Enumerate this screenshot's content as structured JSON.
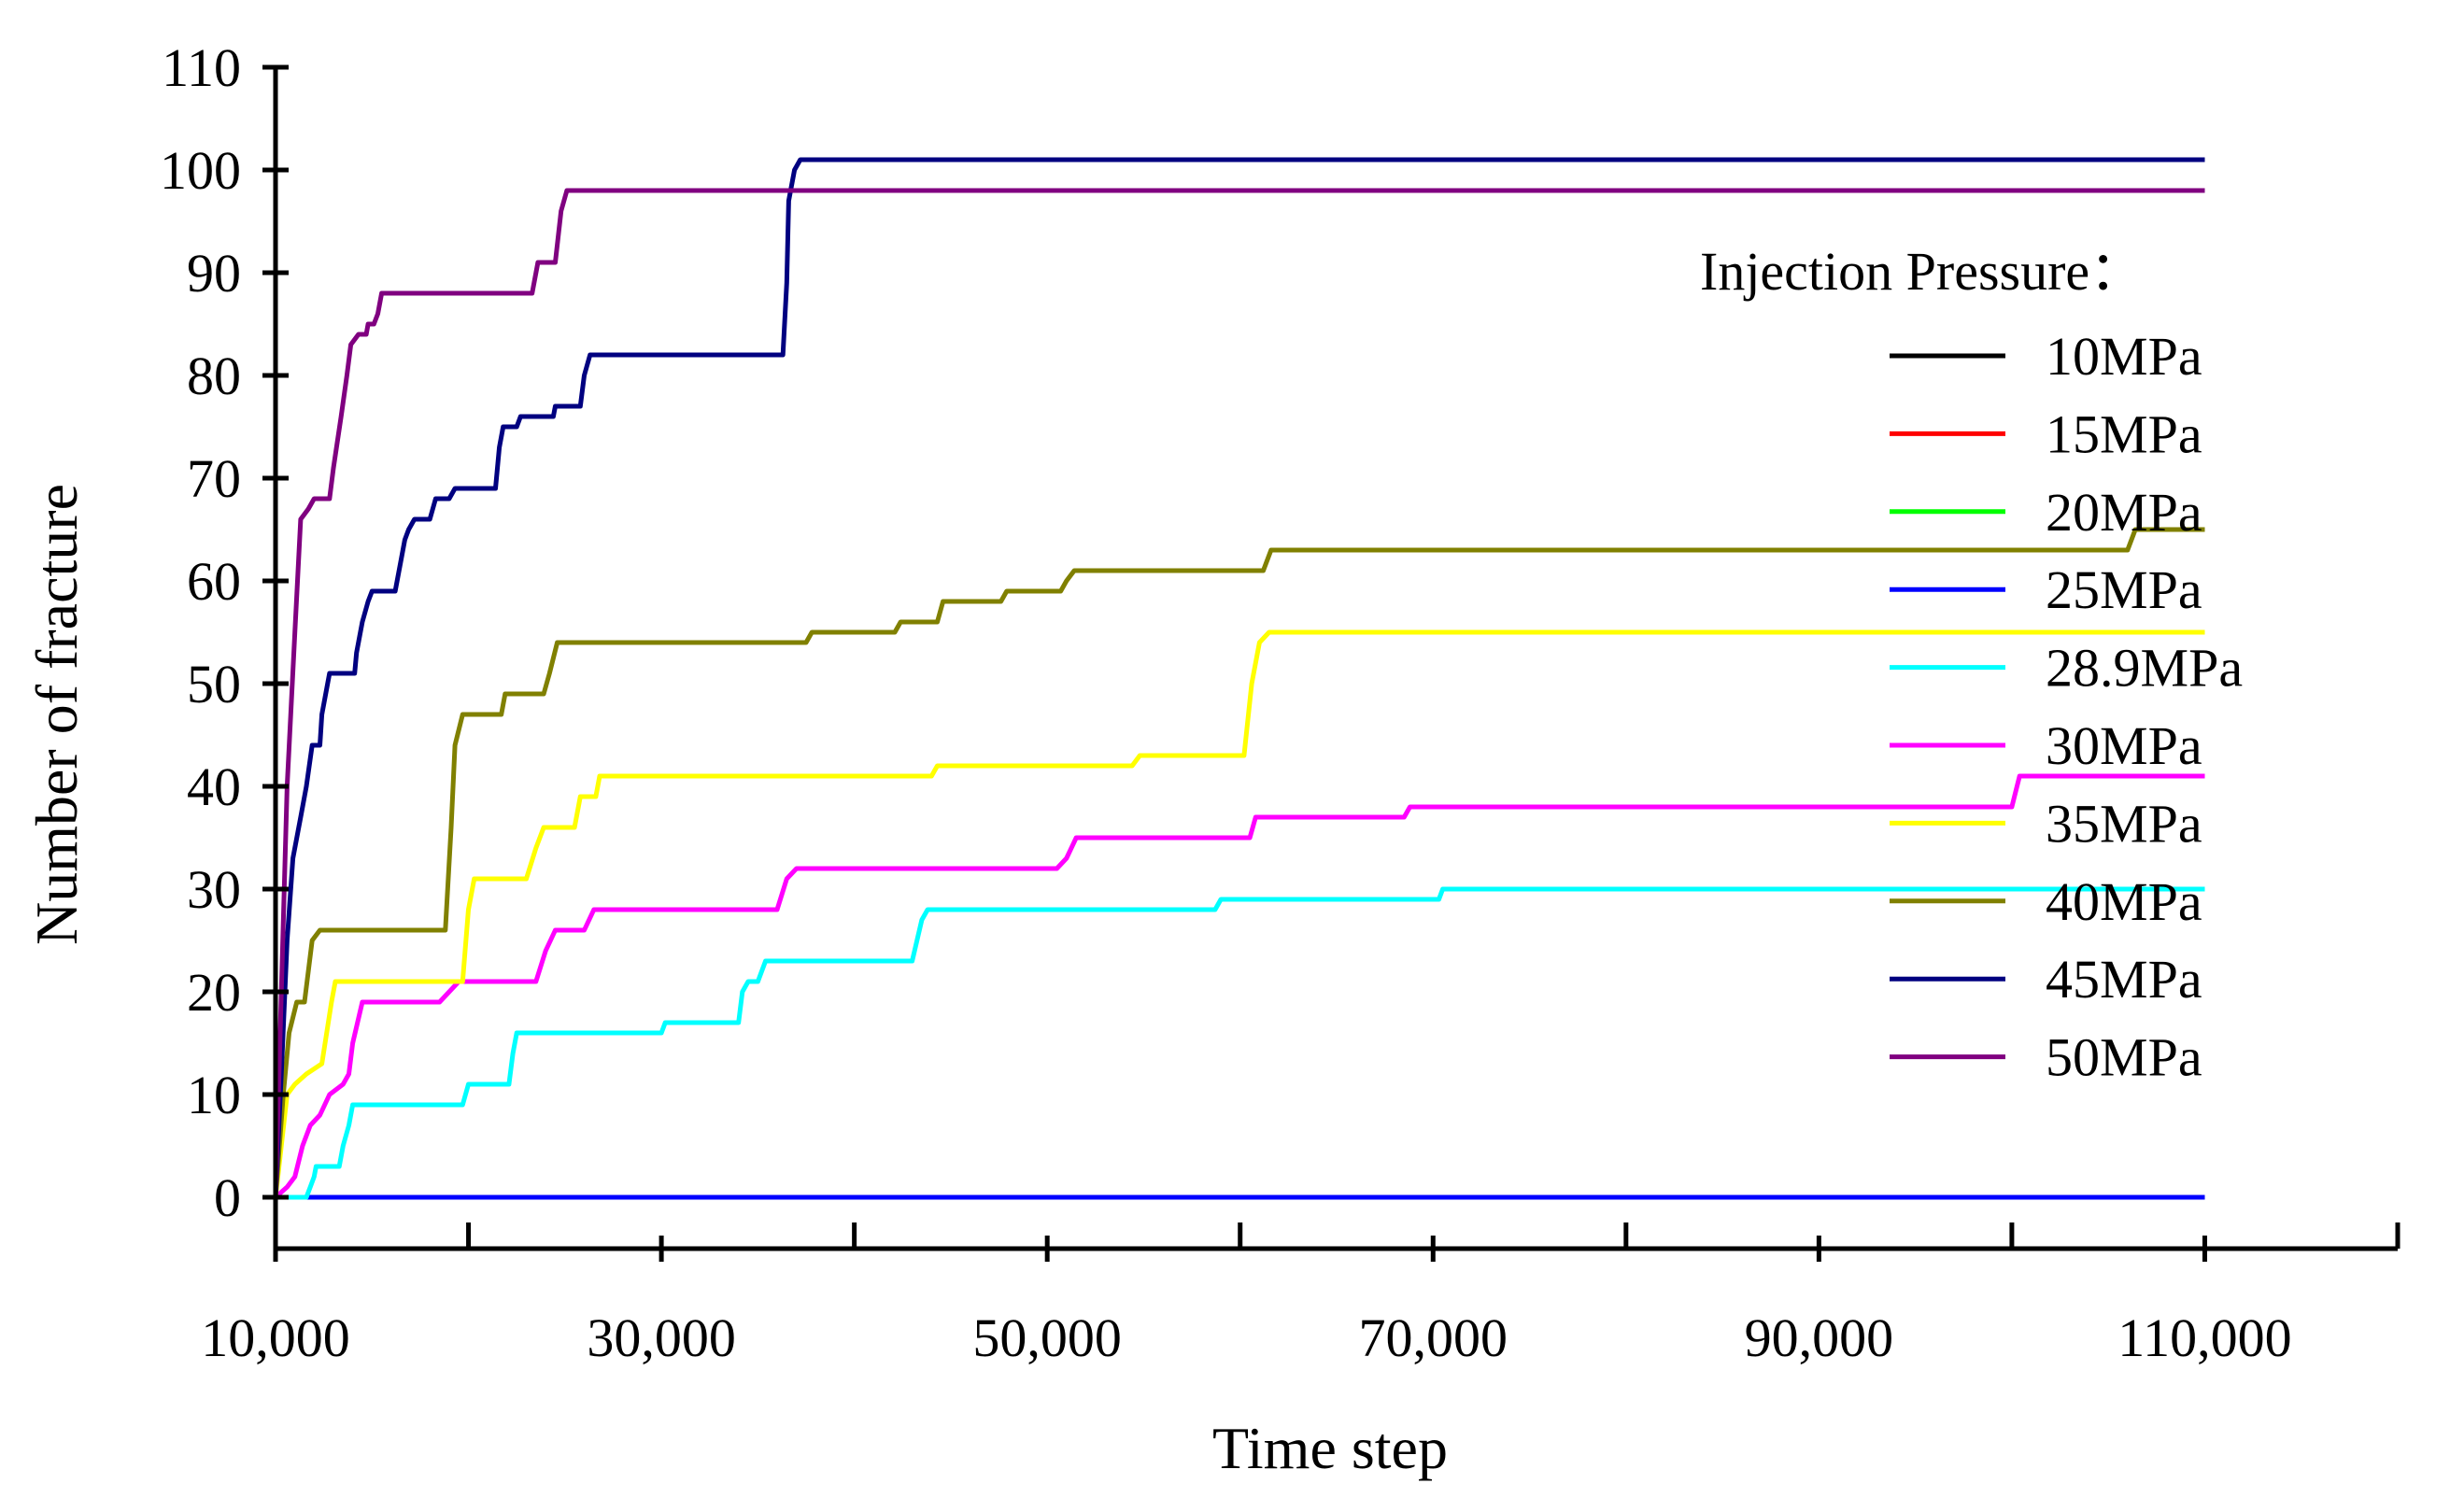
{
  "chart_data": {
    "type": "line",
    "title": "",
    "xlabel": "Time step",
    "ylabel": "Number of fracture",
    "xlim": [
      10000,
      120000
    ],
    "ylim": [
      -5,
      110
    ],
    "x_ticks": [
      10000,
      30000,
      50000,
      70000,
      90000,
      110000
    ],
    "x_tick_labels": [
      "10,000",
      "30,000",
      "50,000",
      "70,000",
      "90,000",
      "110,000"
    ],
    "y_ticks": [
      0,
      10,
      20,
      30,
      40,
      50,
      60,
      70,
      80,
      90,
      100,
      110
    ],
    "y_tick_labels": [
      "0",
      "10",
      "20",
      "30",
      "40",
      "50",
      "60",
      "70",
      "80",
      "90",
      "100",
      "110"
    ],
    "grid": false,
    "legend_position": "right",
    "legend_title": "Injection Pressure：",
    "series": [
      {
        "name": "10MPa",
        "color": "#000000",
        "points": [
          [
            10000,
            0
          ],
          [
            110000,
            0
          ]
        ]
      },
      {
        "name": "15MPa",
        "color": "#ff0000",
        "points": [
          [
            10000,
            0
          ],
          [
            110000,
            0
          ]
        ]
      },
      {
        "name": "20MPa",
        "color": "#00ff00",
        "points": [
          [
            10000,
            0
          ],
          [
            110000,
            0
          ]
        ]
      },
      {
        "name": "25MPa",
        "color": "#0000ff",
        "points": [
          [
            10000,
            0
          ],
          [
            110000,
            0
          ]
        ]
      },
      {
        "name": "28.9MPa",
        "color": "#00ffff",
        "points": [
          [
            10000,
            0
          ],
          [
            11600,
            0
          ],
          [
            11800,
            1
          ],
          [
            12000,
            2
          ],
          [
            12100,
            3
          ],
          [
            13300,
            3
          ],
          [
            13500,
            5
          ],
          [
            13800,
            7
          ],
          [
            14000,
            9
          ],
          [
            19700,
            9
          ],
          [
            20000,
            11
          ],
          [
            22100,
            11
          ],
          [
            22300,
            14
          ],
          [
            22500,
            16
          ],
          [
            30000,
            16
          ],
          [
            30200,
            17
          ],
          [
            34000,
            17
          ],
          [
            34200,
            20
          ],
          [
            34500,
            21
          ],
          [
            35000,
            21
          ],
          [
            35400,
            23
          ],
          [
            43000,
            23
          ],
          [
            43500,
            27
          ],
          [
            43800,
            28
          ],
          [
            58700,
            28
          ],
          [
            59000,
            29
          ],
          [
            70300,
            29
          ],
          [
            70500,
            30
          ],
          [
            110000,
            30
          ]
        ]
      },
      {
        "name": "30MPa",
        "color": "#ff00ff",
        "points": [
          [
            10000,
            0
          ],
          [
            10600,
            1
          ],
          [
            11000,
            2
          ],
          [
            11400,
            5
          ],
          [
            11800,
            7
          ],
          [
            12300,
            8
          ],
          [
            12800,
            10
          ],
          [
            13500,
            11
          ],
          [
            13800,
            12
          ],
          [
            14000,
            15
          ],
          [
            14500,
            19
          ],
          [
            18500,
            19
          ],
          [
            19000,
            20
          ],
          [
            19500,
            21
          ],
          [
            23500,
            21
          ],
          [
            24000,
            24
          ],
          [
            24500,
            26
          ],
          [
            26000,
            26
          ],
          [
            26500,
            28
          ],
          [
            36000,
            28
          ],
          [
            36500,
            31
          ],
          [
            37000,
            32
          ],
          [
            50500,
            32
          ],
          [
            51000,
            33
          ],
          [
            51500,
            35
          ],
          [
            60500,
            35
          ],
          [
            60800,
            37
          ],
          [
            68500,
            37
          ],
          [
            68800,
            38
          ],
          [
            100000,
            38
          ],
          [
            100400,
            41
          ],
          [
            110000,
            41
          ]
        ]
      },
      {
        "name": "35MPa",
        "color": "#ffff00",
        "points": [
          [
            10000,
            0
          ],
          [
            10300,
            5
          ],
          [
            10600,
            10
          ],
          [
            11000,
            11
          ],
          [
            11600,
            12
          ],
          [
            12400,
            13
          ],
          [
            12900,
            19
          ],
          [
            13100,
            21
          ],
          [
            19700,
            21
          ],
          [
            20000,
            28
          ],
          [
            20300,
            31
          ],
          [
            23000,
            31
          ],
          [
            23500,
            34
          ],
          [
            23900,
            36
          ],
          [
            25500,
            36
          ],
          [
            25800,
            39
          ],
          [
            26600,
            39
          ],
          [
            26800,
            41
          ],
          [
            44000,
            41
          ],
          [
            44300,
            42
          ],
          [
            54400,
            42
          ],
          [
            54800,
            43
          ],
          [
            60200,
            43
          ],
          [
            60600,
            50
          ],
          [
            61000,
            54
          ],
          [
            61500,
            55
          ],
          [
            110000,
            55
          ]
        ]
      },
      {
        "name": "40MPa",
        "color": "#808000",
        "points": [
          [
            10000,
            0
          ],
          [
            10400,
            10
          ],
          [
            10700,
            16
          ],
          [
            11100,
            19
          ],
          [
            11500,
            19
          ],
          [
            11900,
            25
          ],
          [
            12300,
            26
          ],
          [
            18800,
            26
          ],
          [
            19100,
            36
          ],
          [
            19300,
            44
          ],
          [
            19700,
            47
          ],
          [
            21700,
            47
          ],
          [
            21900,
            49
          ],
          [
            23900,
            49
          ],
          [
            24200,
            51
          ],
          [
            24600,
            54
          ],
          [
            37500,
            54
          ],
          [
            37800,
            55
          ],
          [
            42100,
            55
          ],
          [
            42400,
            56
          ],
          [
            44300,
            56
          ],
          [
            44600,
            58
          ],
          [
            47600,
            58
          ],
          [
            47900,
            59
          ],
          [
            50700,
            59
          ],
          [
            51000,
            60
          ],
          [
            51400,
            61
          ],
          [
            61200,
            61
          ],
          [
            61600,
            63
          ],
          [
            106000,
            63
          ],
          [
            106400,
            65
          ],
          [
            110000,
            65
          ]
        ]
      },
      {
        "name": "45MPa",
        "color": "#000080",
        "points": [
          [
            10000,
            0
          ],
          [
            10300,
            12
          ],
          [
            10600,
            25
          ],
          [
            10900,
            33
          ],
          [
            11300,
            37
          ],
          [
            11600,
            40
          ],
          [
            11900,
            44
          ],
          [
            12300,
            44
          ],
          [
            12400,
            47
          ],
          [
            12600,
            49
          ],
          [
            12800,
            51
          ],
          [
            14100,
            51
          ],
          [
            14200,
            53
          ],
          [
            14500,
            56
          ],
          [
            14800,
            58
          ],
          [
            15000,
            59
          ],
          [
            16200,
            59
          ],
          [
            16500,
            62
          ],
          [
            16700,
            64
          ],
          [
            16900,
            65
          ],
          [
            17200,
            66
          ],
          [
            18000,
            66
          ],
          [
            18300,
            68
          ],
          [
            19000,
            68
          ],
          [
            19300,
            69
          ],
          [
            21400,
            69
          ],
          [
            21600,
            73
          ],
          [
            21800,
            75
          ],
          [
            22500,
            75
          ],
          [
            22700,
            76
          ],
          [
            24400,
            76
          ],
          [
            24500,
            77
          ],
          [
            25800,
            77
          ],
          [
            26000,
            80
          ],
          [
            26300,
            82
          ],
          [
            36300,
            82
          ],
          [
            36500,
            89
          ],
          [
            36600,
            97
          ],
          [
            36900,
            100
          ],
          [
            37200,
            101
          ],
          [
            110000,
            101
          ]
        ]
      },
      {
        "name": "50MPa",
        "color": "#800080",
        "points": [
          [
            10000,
            0
          ],
          [
            10300,
            20
          ],
          [
            10600,
            40
          ],
          [
            11000,
            55
          ],
          [
            11300,
            66
          ],
          [
            11700,
            67
          ],
          [
            12000,
            68
          ],
          [
            12800,
            68
          ],
          [
            13000,
            71
          ],
          [
            13400,
            76
          ],
          [
            13700,
            80
          ],
          [
            13900,
            83
          ],
          [
            14300,
            84
          ],
          [
            14700,
            84
          ],
          [
            14800,
            85
          ],
          [
            15100,
            85
          ],
          [
            15300,
            86
          ],
          [
            15500,
            88
          ],
          [
            23300,
            88
          ],
          [
            23600,
            91
          ],
          [
            24500,
            91
          ],
          [
            24800,
            96
          ],
          [
            25100,
            98
          ],
          [
            110000,
            98
          ]
        ]
      }
    ]
  }
}
